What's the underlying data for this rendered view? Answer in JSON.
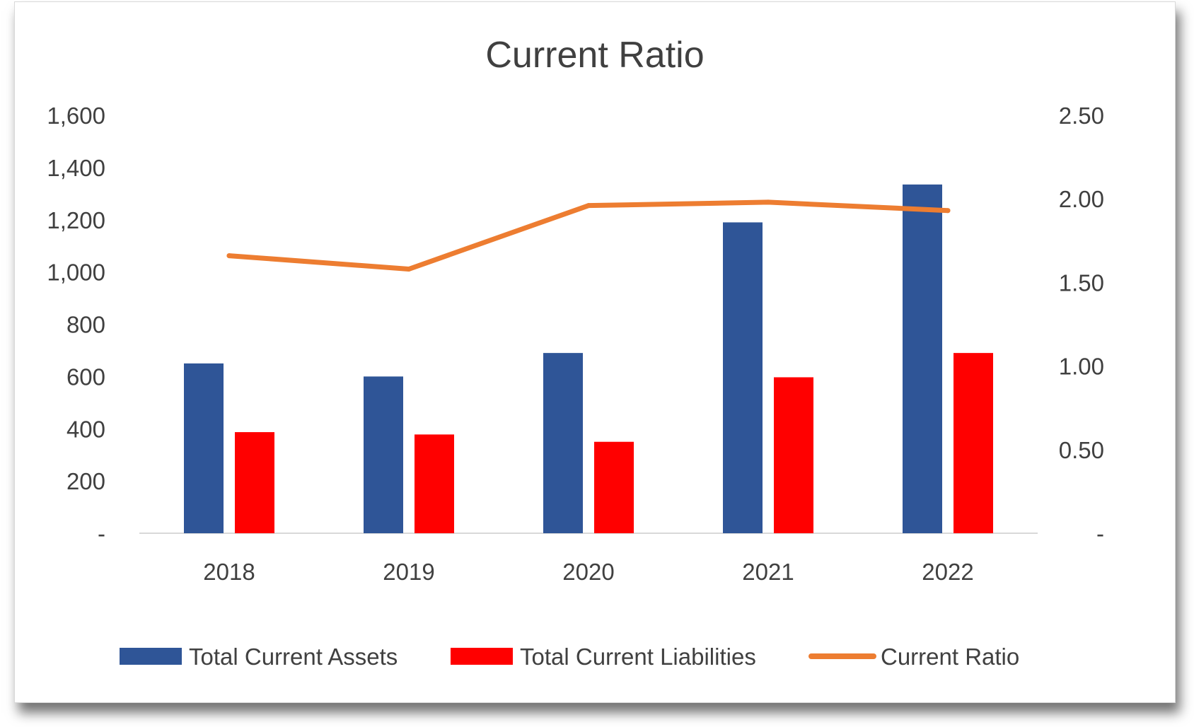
{
  "chart_data": {
    "type": "bar",
    "title": "Current Ratio",
    "categories": [
      "2018",
      "2019",
      "2020",
      "2021",
      "2022"
    ],
    "series": [
      {
        "name": "Total Current Assets",
        "type": "bar",
        "axis": "left",
        "color": "#2F5597",
        "values": [
          650,
          600,
          690,
          1190,
          1335
        ]
      },
      {
        "name": "Total Current Liabilities",
        "type": "bar",
        "axis": "left",
        "color": "#FF0000",
        "values": [
          387,
          378,
          350,
          597,
          690
        ]
      },
      {
        "name": "Current Ratio",
        "type": "line",
        "axis": "right",
        "color": "#ED7D31",
        "values": [
          1.66,
          1.58,
          1.96,
          1.98,
          1.93
        ]
      }
    ],
    "y_left": {
      "range": [
        0,
        1600
      ],
      "tick_values": [
        0,
        200,
        400,
        600,
        800,
        1000,
        1200,
        1400,
        1600
      ],
      "tick_labels": [
        "-",
        "200",
        "400",
        "600",
        "800",
        "1,000",
        "1,200",
        "1,400",
        "1,600"
      ]
    },
    "y_right": {
      "range": [
        0,
        2.5
      ],
      "tick_values": [
        0,
        0.5,
        1.0,
        1.5,
        2.0,
        2.5
      ],
      "tick_labels": [
        "-",
        "0.50",
        "1.00",
        "1.50",
        "2.00",
        "2.50"
      ]
    },
    "grid": false,
    "legend_position": "bottom"
  }
}
